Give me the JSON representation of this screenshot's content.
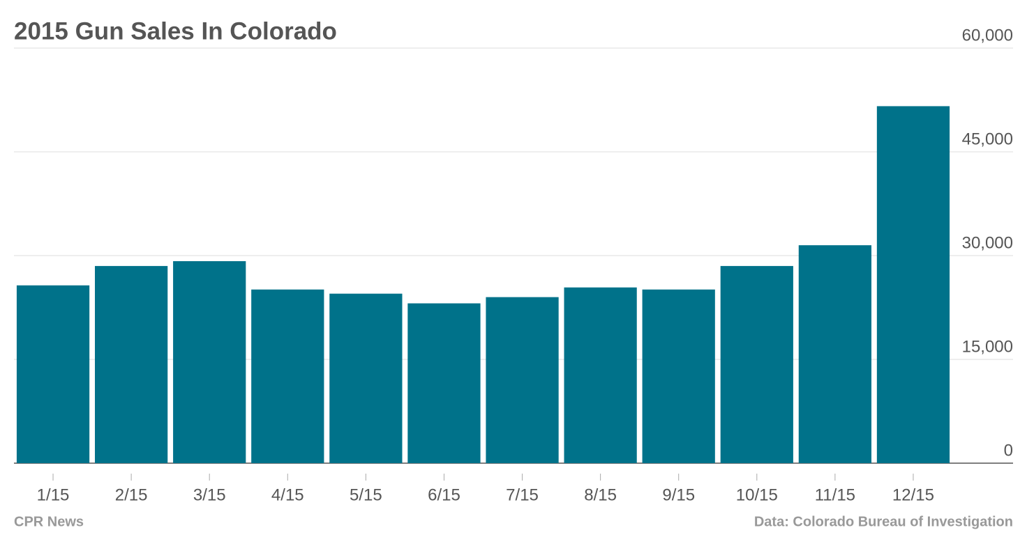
{
  "chart_data": {
    "type": "bar",
    "title": "2015 Gun Sales In Colorado",
    "categories": [
      "1/15",
      "2/15",
      "3/15",
      "4/15",
      "5/15",
      "6/15",
      "7/15",
      "8/15",
      "9/15",
      "10/15",
      "11/15",
      "12/15"
    ],
    "values": [
      25700,
      28500,
      29200,
      25100,
      24500,
      23100,
      24000,
      25400,
      25100,
      28500,
      31500,
      51600
    ],
    "color": "#00728a",
    "ylim": [
      0,
      60000
    ],
    "yticks": [
      0,
      {
        "value": 15000,
        "label": "15,000"
      },
      {
        "value": 30000,
        "label": "30,000"
      },
      {
        "value": 45000,
        "label": "45,000"
      },
      {
        "value": 60000,
        "label": "60,000"
      }
    ],
    "grid": true,
    "credit": "CPR News",
    "source": "Data: Colorado Bureau of Investigation"
  }
}
